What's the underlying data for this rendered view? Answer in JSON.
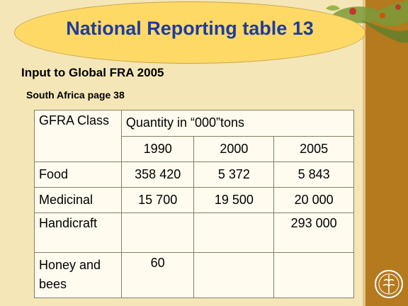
{
  "slide": {
    "title": "National Reporting table 13",
    "subtitle": "Input to Global FRA 2005",
    "source": "South Africa page 38"
  },
  "table": {
    "header_class": "GFRA Class",
    "header_quantity": "Quantity in “000”tons",
    "years": [
      "1990",
      "2000",
      "2005"
    ],
    "rows": [
      {
        "label": "Food",
        "values": [
          "358 420",
          "5 372",
          "5 843"
        ]
      },
      {
        "label": "Medicinal",
        "values": [
          "15 700",
          "19 500",
          "20 000"
        ]
      },
      {
        "label": "Handicraft",
        "values": [
          "",
          "",
          "293 000"
        ]
      },
      {
        "label": "Honey and bees",
        "values": [
          "60",
          "",
          ""
        ]
      }
    ]
  },
  "colors": {
    "background": "#F4E6B7",
    "sidebar": "#B5791E",
    "title_ellipse": "#FFD966",
    "title_text": "#1F3BA0"
  },
  "icons": {
    "logo": "fao-logo-icon",
    "decoration": "leaves-decoration"
  }
}
